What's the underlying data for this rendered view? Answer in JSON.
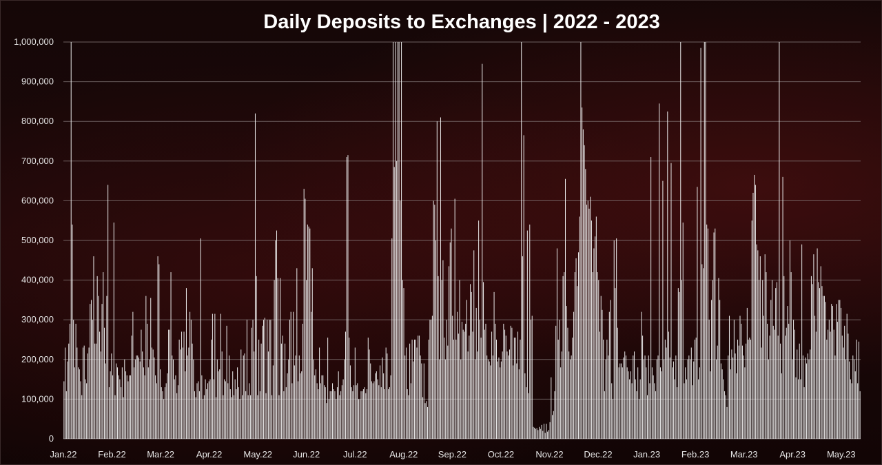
{
  "chart_data": {
    "type": "bar",
    "title": "Daily Deposits to Exchanges | 2022 - 2023",
    "xlabel": "",
    "ylabel": "",
    "ylim": [
      0,
      1000000
    ],
    "y_ticks": [
      "0",
      "100,000",
      "200,000",
      "300,000",
      "400,000",
      "500,000",
      "600,000",
      "700,000",
      "800,000",
      "900,000",
      "1,000,000"
    ],
    "x_ticks": [
      "Jan.22",
      "Feb.22",
      "Mar.22",
      "Apr.22",
      "May.22",
      "Jun.22",
      "Jul.22",
      "Aug.22",
      "Sep.22",
      "Oct.22",
      "Nov.22",
      "Dec.22",
      "Jan.23",
      "Feb.23",
      "Mar.23",
      "Apr.23",
      "May.23"
    ],
    "grid": true,
    "bar_color": "#ebebeb",
    "background_color": "#1a0708",
    "series": [
      {
        "values": [
          145000,
          230000,
          120000,
          195000,
          240000,
          290000,
          1000000,
          540000,
          300000,
          180000,
          290000,
          230000,
          180000,
          175000,
          145000,
          110000,
          230000,
          235000,
          150000,
          140000,
          215000,
          230000,
          340000,
          350000,
          300000,
          460000,
          240000,
          240000,
          410000,
          360000,
          270000,
          220000,
          340000,
          420000,
          280000,
          190000,
          360000,
          640000,
          130000,
          170000,
          215000,
          160000,
          545000,
          110000,
          190000,
          180000,
          160000,
          150000,
          130000,
          180000,
          105000,
          200000,
          170000,
          160000,
          145000,
          160000,
          160000,
          260000,
          320000,
          180000,
          200000,
          210000,
          210000,
          205000,
          195000,
          275000,
          220000,
          180000,
          160000,
          360000,
          290000,
          180000,
          200000,
          355000,
          230000,
          225000,
          205000,
          160000,
          140000,
          460000,
          440000,
          175000,
          130000,
          120000,
          100000,
          130000,
          140000,
          165000,
          275000,
          275000,
          420000,
          210000,
          200000,
          150000,
          160000,
          115000,
          135000,
          250000,
          225000,
          270000,
          230000,
          270000,
          170000,
          380000,
          210000,
          230000,
          320000,
          300000,
          240000,
          200000,
          120000,
          105000,
          140000,
          145000,
          120000,
          505000,
          160000,
          100000,
          110000,
          150000,
          125000,
          140000,
          145000,
          150000,
          250000,
          315000,
          150000,
          315000,
          105000,
          200000,
          170000,
          175000,
          315000,
          220000,
          110000,
          150000,
          145000,
          285000,
          140000,
          210000,
          125000,
          105000,
          170000,
          110000,
          150000,
          125000,
          180000,
          130000,
          100000,
          225000,
          110000,
          210000,
          215000,
          120000,
          300000,
          110000,
          140000,
          110000,
          280000,
          300000,
          220000,
          820000,
          410000,
          110000,
          250000,
          120000,
          240000,
          285000,
          300000,
          305000,
          115000,
          300000,
          220000,
          300000,
          300000,
          110000,
          185000,
          400000,
          500000,
          525000,
          405000,
          110000,
          405000,
          240000,
          260000,
          120000,
          240000,
          130000,
          165000,
          200000,
          300000,
          320000,
          140000,
          320000,
          185000,
          210000,
          430000,
          145000,
          210000,
          165000,
          170000,
          290000,
          630000,
          605000,
          400000,
          540000,
          535000,
          530000,
          320000,
          430000,
          200000,
          160000,
          175000,
          140000,
          125000,
          230000,
          140000,
          160000,
          160000,
          135000,
          130000,
          90000,
          255000,
          100000,
          120000,
          120000,
          140000,
          125000,
          120000,
          100000,
          130000,
          170000,
          110000,
          120000,
          135000,
          150000,
          200000,
          270000,
          710000,
          715000,
          255000,
          185000,
          130000,
          120000,
          135000,
          230000,
          135000,
          140000,
          100000,
          100000,
          120000,
          120000,
          125000,
          130000,
          115000,
          125000,
          255000,
          225000,
          190000,
          145000,
          140000,
          145000,
          165000,
          170000,
          150000,
          135000,
          185000,
          130000,
          205000,
          165000,
          125000,
          230000,
          215000,
          125000,
          130000,
          160000,
          505000,
          1000000,
          685000,
          1000000,
          700000,
          1000000,
          1000000,
          600000,
          1000000,
          400000,
          380000,
          210000,
          230000,
          125000,
          110000,
          240000,
          140000,
          250000,
          195000,
          250000,
          250000,
          230000,
          260000,
          260000,
          210000,
          190000,
          105000,
          190000,
          90000,
          95000,
          80000,
          250000,
          300000,
          300000,
          310000,
          600000,
          590000,
          500000,
          800000,
          410000,
          200000,
          810000,
          400000,
          450000,
          255000,
          200000,
          300000,
          235000,
          435000,
          495000,
          530000,
          310000,
          250000,
          605000,
          250000,
          320000,
          265000,
          400000,
          200000,
          295000,
          275000,
          270000,
          290000,
          350000,
          220000,
          260000,
          390000,
          370000,
          270000,
          475000,
          200000,
          330000,
          220000,
          550000,
          300000,
          255000,
          945000,
          395000,
          275000,
          290000,
          210000,
          200000,
          195000,
          185000,
          270000,
          210000,
          370000,
          290000,
          250000,
          195000,
          205000,
          180000,
          195000,
          220000,
          290000,
          275000,
          260000,
          220000,
          210000,
          225000,
          285000,
          280000,
          185000,
          255000,
          255000,
          190000,
          270000,
          175000,
          250000,
          1000000,
          460000,
          765000,
          165000,
          130000,
          525000,
          115000,
          540000,
          300000,
          310000,
          30000,
          28000,
          25000,
          27000,
          22000,
          30000,
          25000,
          35000,
          20000,
          38000,
          15000,
          38000,
          18000,
          22000,
          42000,
          155000,
          60000,
          70000,
          120000,
          285000,
          480000,
          250000,
          300000,
          180000,
          220000,
          410000,
          420000,
          655000,
          335000,
          280000,
          220000,
          200000,
          210000,
          255000,
          320000,
          420000,
          455000,
          385000,
          470000,
          560000,
          1000000,
          835000,
          780000,
          740000,
          680000,
          590000,
          600000,
          580000,
          610000,
          550000,
          420000,
          480000,
          510000,
          560000,
          420000,
          400000,
          270000,
          360000,
          325000,
          250000,
          120000,
          200000,
          250000,
          210000,
          320000,
          350000,
          140000,
          100000,
          500000,
          380000,
          505000,
          280000,
          180000,
          190000,
          190000,
          180000,
          205000,
          220000,
          210000,
          180000,
          170000,
          150000,
          170000,
          140000,
          210000,
          220000,
          150000,
          120000,
          180000,
          100000,
          150000,
          320000,
          260000,
          200000,
          210000,
          180000,
          110000,
          210000,
          140000,
          710000,
          180000,
          160000,
          140000,
          120000,
          200000,
          210000,
          845000,
          180000,
          170000,
          650000,
          200000,
          250000,
          230000,
          825000,
          270000,
          205000,
          695000,
          180000,
          195000,
          150000,
          210000,
          130000,
          380000,
          370000,
          1000000,
          400000,
          545000,
          140000,
          180000,
          150000,
          200000,
          210000,
          200000,
          230000,
          135000,
          195000,
          250000,
          255000,
          635000,
          150000,
          180000,
          985000,
          440000,
          430000,
          1000000,
          1000000,
          540000,
          530000,
          300000,
          170000,
          350000,
          400000,
          520000,
          530000,
          200000,
          235000,
          405000,
          350000,
          190000,
          175000,
          150000,
          120000,
          110000,
          80000,
          210000,
          310000,
          175000,
          225000,
          205000,
          300000,
          215000,
          165000,
          250000,
          235000,
          310000,
          290000,
          235000,
          210000,
          180000,
          240000,
          330000,
          250000,
          255000,
          250000,
          550000,
          620000,
          665000,
          640000,
          490000,
          475000,
          400000,
          460000,
          230000,
          400000,
          310000,
          465000,
          420000,
          290000,
          200000,
          260000,
          350000,
          400000,
          285000,
          275000,
          380000,
          395000,
          260000,
          1000000,
          240000,
          165000,
          660000,
          410000,
          260000,
          280000,
          335000,
          290000,
          500000,
          420000,
          200000,
          300000,
          275000,
          155000,
          225000,
          150000,
          240000,
          150000,
          490000,
          210000,
          130000,
          205000,
          190000,
          215000,
          200000,
          225000,
          410000,
          390000,
          465000,
          310000,
          270000,
          480000,
          395000,
          380000,
          435000,
          385000,
          360000,
          360000,
          345000,
          250000,
          275000,
          300000,
          270000,
          340000,
          335000,
          275000,
          210000,
          340000,
          295000,
          350000,
          350000,
          330000,
          260000,
          230000,
          285000,
          200000,
          315000,
          265000,
          195000,
          150000,
          140000,
          210000,
          200000,
          170000,
          250000,
          140000,
          245000,
          120000
        ]
      }
    ]
  }
}
